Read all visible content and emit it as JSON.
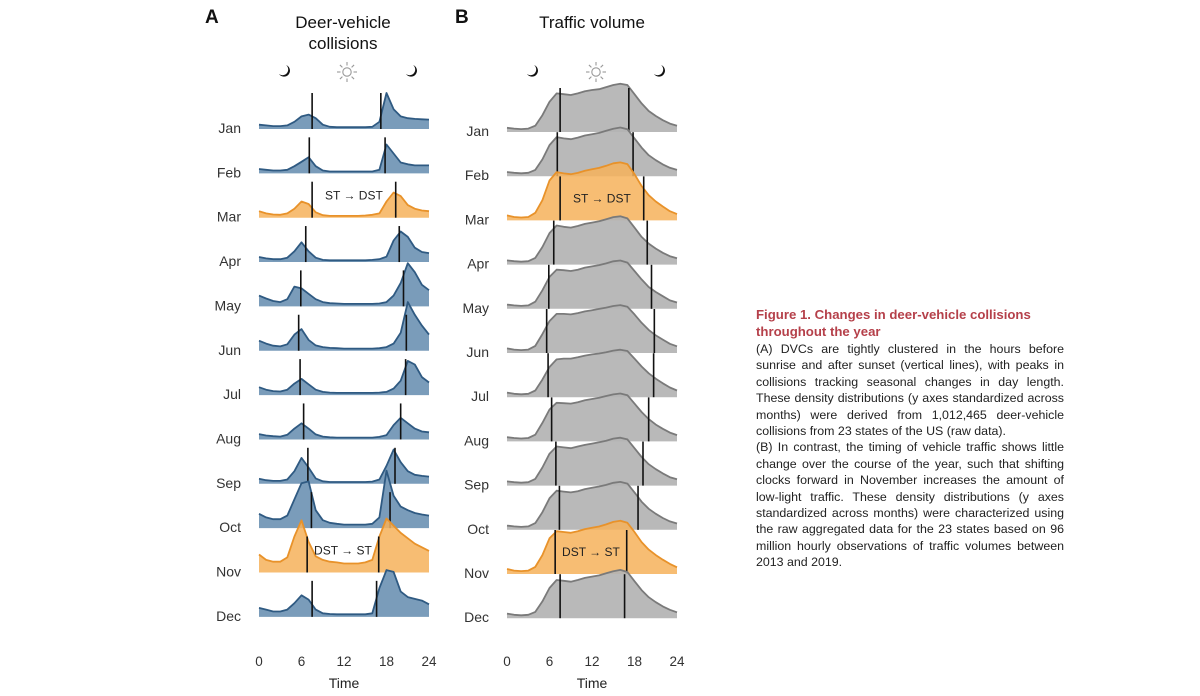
{
  "figure": {
    "caption_title": "Figure 1.  Changes in deer-vehicle collisions throughout the year",
    "caption_a": "(A) DVCs are tightly clustered in the hours before sunrise and after sunset (vertical lines), with peaks in collisions tracking seasonal changes in day length. These density distributions (y axes standardized across months) were derived from 1,012,465 deer-vehicle collisions from 23 states of the US (raw data).",
    "caption_b": "(B) In contrast, the timing of vehicle traffic shows little change over the course of the year, such that shifting clocks forward in November increases the amount of low-light traffic. These density distributions (y axes standardized across months) were characterized using the raw aggregated data for the 23 states based on 96 million hourly observations of traffic volumes between 2013 and 2019."
  },
  "colors": {
    "dvc_fill": "#7a9cba",
    "dvc_line": "#2f5a82",
    "traffic_fill": "#b3b3b3",
    "traffic_line": "#7a7a7a",
    "traffic_overlap": "#9a9a9a",
    "transition_fill": "#f6b25a",
    "transition_line": "#e8922a",
    "caption_title": "#b5404a"
  },
  "chart_data": [
    {
      "panel": "A",
      "type": "area",
      "title": "Deer-vehicle collisions",
      "xlabel": "Time",
      "ylabel": "",
      "xlim": [
        0,
        24
      ],
      "xticks": [
        0,
        6,
        12,
        18,
        24
      ],
      "x": [
        0,
        1,
        2,
        3,
        4,
        5,
        6,
        7,
        8,
        9,
        10,
        11,
        12,
        13,
        14,
        15,
        16,
        17,
        18,
        19,
        20,
        21,
        22,
        23,
        24
      ],
      "icons": [
        "moon-left",
        "sun",
        "moon-right"
      ],
      "categories": [
        "Jan",
        "Feb",
        "Mar",
        "Apr",
        "May",
        "Jun",
        "Jul",
        "Aug",
        "Sep",
        "Oct",
        "Nov",
        "Dec"
      ],
      "highlight": {
        "Mar": "ST → DST",
        "Nov": "DST → ST"
      },
      "sunrise": [
        7.5,
        7.1,
        7.5,
        6.6,
        5.9,
        5.6,
        5.8,
        6.3,
        6.9,
        7.4,
        6.8,
        7.5
      ],
      "sunset": [
        17.2,
        17.8,
        19.3,
        19.8,
        20.4,
        20.8,
        20.7,
        20.0,
        19.2,
        18.5,
        16.9,
        16.6
      ],
      "series": [
        {
          "name": "Jan",
          "values": [
            0.12,
            0.1,
            0.08,
            0.08,
            0.1,
            0.2,
            0.35,
            0.4,
            0.3,
            0.12,
            0.06,
            0.05,
            0.05,
            0.05,
            0.05,
            0.05,
            0.06,
            0.2,
            1.0,
            0.55,
            0.35,
            0.3,
            0.28,
            0.27,
            0.26
          ]
        },
        {
          "name": "Feb",
          "values": [
            0.12,
            0.1,
            0.08,
            0.08,
            0.1,
            0.2,
            0.32,
            0.45,
            0.2,
            0.08,
            0.05,
            0.05,
            0.05,
            0.05,
            0.05,
            0.05,
            0.05,
            0.1,
            0.8,
            0.55,
            0.3,
            0.25,
            0.22,
            0.22,
            0.22
          ]
        },
        {
          "name": "Mar",
          "values": [
            0.18,
            0.12,
            0.09,
            0.08,
            0.12,
            0.25,
            0.45,
            0.38,
            0.15,
            0.07,
            0.05,
            0.05,
            0.05,
            0.05,
            0.05,
            0.06,
            0.08,
            0.12,
            0.45,
            0.7,
            0.6,
            0.35,
            0.25,
            0.2,
            0.18
          ]
        },
        {
          "name": "Apr",
          "values": [
            0.14,
            0.1,
            0.08,
            0.08,
            0.12,
            0.3,
            0.55,
            0.3,
            0.12,
            0.06,
            0.05,
            0.05,
            0.05,
            0.05,
            0.05,
            0.05,
            0.06,
            0.08,
            0.15,
            0.6,
            0.85,
            0.7,
            0.4,
            0.28,
            0.25
          ]
        },
        {
          "name": "May",
          "values": [
            0.3,
            0.22,
            0.15,
            0.12,
            0.2,
            0.55,
            0.5,
            0.35,
            0.2,
            0.12,
            0.09,
            0.08,
            0.07,
            0.07,
            0.07,
            0.07,
            0.07,
            0.08,
            0.12,
            0.3,
            0.65,
            1.2,
            0.95,
            0.6,
            0.45
          ]
        },
        {
          "name": "Jun",
          "values": [
            0.28,
            0.2,
            0.14,
            0.12,
            0.18,
            0.45,
            0.6,
            0.3,
            0.15,
            0.1,
            0.08,
            0.07,
            0.06,
            0.06,
            0.06,
            0.06,
            0.06,
            0.07,
            0.1,
            0.2,
            0.5,
            1.35,
            1.0,
            0.7,
            0.45
          ]
        },
        {
          "name": "Jul",
          "values": [
            0.22,
            0.15,
            0.11,
            0.1,
            0.15,
            0.32,
            0.45,
            0.3,
            0.15,
            0.09,
            0.07,
            0.06,
            0.06,
            0.06,
            0.06,
            0.06,
            0.06,
            0.07,
            0.09,
            0.18,
            0.4,
            0.95,
            0.85,
            0.5,
            0.35
          ]
        },
        {
          "name": "Aug",
          "values": [
            0.15,
            0.11,
            0.09,
            0.08,
            0.13,
            0.3,
            0.45,
            0.3,
            0.14,
            0.08,
            0.06,
            0.05,
            0.05,
            0.05,
            0.05,
            0.05,
            0.05,
            0.07,
            0.12,
            0.4,
            0.6,
            0.45,
            0.3,
            0.22,
            0.2
          ]
        },
        {
          "name": "Sep",
          "values": [
            0.14,
            0.1,
            0.08,
            0.08,
            0.12,
            0.35,
            0.72,
            0.45,
            0.15,
            0.07,
            0.05,
            0.05,
            0.05,
            0.05,
            0.05,
            0.05,
            0.06,
            0.12,
            0.5,
            0.95,
            0.6,
            0.35,
            0.25,
            0.22,
            0.2
          ]
        },
        {
          "name": "Oct",
          "values": [
            0.4,
            0.3,
            0.25,
            0.25,
            0.35,
            0.8,
            1.25,
            1.3,
            0.5,
            0.22,
            0.15,
            0.12,
            0.1,
            0.1,
            0.1,
            0.1,
            0.12,
            0.3,
            1.6,
            0.9,
            0.6,
            0.5,
            0.42,
            0.38,
            0.35
          ]
        },
        {
          "name": "Nov",
          "values": [
            0.5,
            0.35,
            0.3,
            0.3,
            0.42,
            1.0,
            1.45,
            0.85,
            0.45,
            0.35,
            0.3,
            0.28,
            0.25,
            0.25,
            0.25,
            0.28,
            0.35,
            1.0,
            1.5,
            1.3,
            1.1,
            0.95,
            0.8,
            0.7,
            0.6
          ]
        },
        {
          "name": "Dec",
          "values": [
            0.25,
            0.2,
            0.15,
            0.15,
            0.2,
            0.38,
            0.6,
            0.48,
            0.2,
            0.1,
            0.08,
            0.07,
            0.07,
            0.07,
            0.07,
            0.07,
            0.1,
            0.8,
            1.3,
            1.25,
            0.7,
            0.55,
            0.5,
            0.45,
            0.35
          ]
        }
      ]
    },
    {
      "panel": "B",
      "type": "area",
      "title": "Traffic volume",
      "xlabel": "Time",
      "ylabel": "",
      "xlim": [
        0,
        24
      ],
      "xticks": [
        0,
        6,
        12,
        18,
        24
      ],
      "x": [
        0,
        1,
        2,
        3,
        4,
        5,
        6,
        7,
        8,
        9,
        10,
        11,
        12,
        13,
        14,
        15,
        16,
        17,
        18,
        19,
        20,
        21,
        22,
        23,
        24
      ],
      "icons": [
        "moon-left",
        "sun",
        "moon-right"
      ],
      "categories": [
        "Jan",
        "Feb",
        "Mar",
        "Apr",
        "May",
        "Jun",
        "Jul",
        "Aug",
        "Sep",
        "Oct",
        "Nov",
        "Dec"
      ],
      "highlight": {
        "Mar": "ST → DST",
        "Nov": "DST → ST"
      },
      "sunrise": [
        7.5,
        7.1,
        7.5,
        6.6,
        5.9,
        5.6,
        5.8,
        6.3,
        6.9,
        7.4,
        6.8,
        7.5
      ],
      "sunset": [
        17.2,
        17.8,
        19.3,
        19.8,
        20.4,
        20.8,
        20.7,
        20.0,
        19.2,
        18.5,
        16.9,
        16.6
      ],
      "series": [
        {
          "name": "Jan",
          "values": [
            0.1,
            0.08,
            0.07,
            0.08,
            0.15,
            0.4,
            0.72,
            0.92,
            0.9,
            0.88,
            0.92,
            0.97,
            1.0,
            1.02,
            1.07,
            1.12,
            1.15,
            1.12,
            0.9,
            0.68,
            0.5,
            0.38,
            0.28,
            0.2,
            0.15
          ]
        },
        {
          "name": "Feb",
          "values": [
            0.1,
            0.08,
            0.07,
            0.08,
            0.15,
            0.4,
            0.74,
            0.93,
            0.9,
            0.88,
            0.92,
            0.97,
            1.0,
            1.03,
            1.08,
            1.13,
            1.16,
            1.12,
            0.9,
            0.68,
            0.5,
            0.38,
            0.28,
            0.2,
            0.15
          ]
        },
        {
          "name": "Mar",
          "values": [
            0.12,
            0.08,
            0.07,
            0.08,
            0.18,
            0.48,
            0.95,
            1.15,
            1.12,
            1.1,
            1.13,
            1.18,
            1.22,
            1.25,
            1.3,
            1.36,
            1.38,
            1.34,
            1.1,
            0.82,
            0.6,
            0.45,
            0.33,
            0.22,
            0.15
          ]
        },
        {
          "name": "Apr",
          "values": [
            0.1,
            0.08,
            0.07,
            0.08,
            0.16,
            0.42,
            0.75,
            0.93,
            0.9,
            0.88,
            0.92,
            0.97,
            1.0,
            1.03,
            1.08,
            1.13,
            1.15,
            1.1,
            0.88,
            0.66,
            0.5,
            0.38,
            0.28,
            0.2,
            0.15
          ]
        },
        {
          "name": "May",
          "values": [
            0.1,
            0.08,
            0.07,
            0.08,
            0.17,
            0.44,
            0.76,
            0.93,
            0.92,
            0.9,
            0.93,
            0.98,
            1.01,
            1.04,
            1.08,
            1.13,
            1.15,
            1.1,
            0.9,
            0.7,
            0.52,
            0.4,
            0.3,
            0.2,
            0.15
          ]
        },
        {
          "name": "Jun",
          "values": [
            0.11,
            0.08,
            0.07,
            0.08,
            0.17,
            0.45,
            0.76,
            0.93,
            0.93,
            0.92,
            0.95,
            0.99,
            1.02,
            1.05,
            1.08,
            1.12,
            1.14,
            1.1,
            0.92,
            0.72,
            0.55,
            0.42,
            0.32,
            0.22,
            0.16
          ]
        },
        {
          "name": "Jul",
          "values": [
            0.11,
            0.08,
            0.07,
            0.08,
            0.16,
            0.42,
            0.72,
            0.9,
            0.92,
            0.92,
            0.95,
            0.99,
            1.02,
            1.04,
            1.07,
            1.11,
            1.13,
            1.1,
            0.92,
            0.73,
            0.57,
            0.44,
            0.33,
            0.23,
            0.16
          ]
        },
        {
          "name": "Aug",
          "values": [
            0.1,
            0.08,
            0.07,
            0.08,
            0.16,
            0.44,
            0.76,
            0.92,
            0.91,
            0.9,
            0.93,
            0.98,
            1.01,
            1.04,
            1.08,
            1.12,
            1.14,
            1.1,
            0.9,
            0.7,
            0.53,
            0.4,
            0.3,
            0.21,
            0.15
          ]
        },
        {
          "name": "Sep",
          "values": [
            0.1,
            0.08,
            0.07,
            0.08,
            0.16,
            0.43,
            0.76,
            0.93,
            0.91,
            0.89,
            0.93,
            0.97,
            1.0,
            1.03,
            1.07,
            1.12,
            1.14,
            1.1,
            0.89,
            0.68,
            0.51,
            0.39,
            0.29,
            0.2,
            0.15
          ]
        },
        {
          "name": "Oct",
          "values": [
            0.1,
            0.08,
            0.07,
            0.08,
            0.16,
            0.42,
            0.75,
            0.93,
            0.91,
            0.89,
            0.92,
            0.97,
            1.0,
            1.03,
            1.07,
            1.12,
            1.14,
            1.1,
            0.89,
            0.67,
            0.5,
            0.38,
            0.28,
            0.2,
            0.15
          ]
        },
        {
          "name": "Nov",
          "values": [
            0.12,
            0.08,
            0.07,
            0.08,
            0.17,
            0.45,
            0.85,
            1.02,
            1.0,
            0.98,
            1.02,
            1.07,
            1.1,
            1.13,
            1.18,
            1.24,
            1.27,
            1.22,
            1.0,
            0.76,
            0.58,
            0.45,
            0.34,
            0.24,
            0.16
          ]
        },
        {
          "name": "Dec",
          "values": [
            0.11,
            0.08,
            0.07,
            0.08,
            0.15,
            0.4,
            0.72,
            0.91,
            0.89,
            0.87,
            0.91,
            0.96,
            0.99,
            1.02,
            1.07,
            1.12,
            1.15,
            1.1,
            0.88,
            0.67,
            0.5,
            0.38,
            0.28,
            0.2,
            0.14
          ]
        }
      ]
    }
  ]
}
